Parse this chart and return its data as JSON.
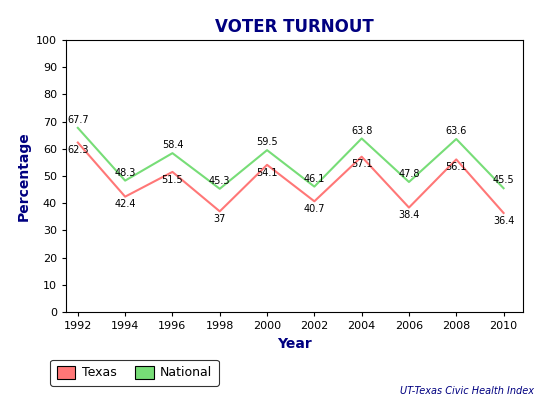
{
  "title": "VOTER TURNOUT",
  "xlabel": "Year",
  "ylabel": "Percentage",
  "years": [
    1992,
    1994,
    1996,
    1998,
    2000,
    2002,
    2004,
    2006,
    2008,
    2010
  ],
  "texas": [
    62.3,
    42.4,
    51.5,
    37.0,
    54.1,
    40.7,
    57.1,
    38.4,
    56.1,
    36.4
  ],
  "national": [
    67.7,
    48.3,
    58.4,
    45.3,
    59.5,
    46.1,
    63.8,
    47.8,
    63.6,
    45.5
  ],
  "texas_color": "#FF7777",
  "national_color": "#77DD77",
  "ylim": [
    0,
    100
  ],
  "yticks": [
    0,
    10,
    20,
    30,
    40,
    50,
    60,
    70,
    80,
    90,
    100
  ],
  "bg_color": "#FFFFFF",
  "plot_bg_color": "#FFFFFF",
  "title_color": "#000080",
  "axis_label_color": "#000080",
  "annotation_color": "#000000",
  "credit": "UT-Texas Civic Health Index",
  "legend_texas": "Texas",
  "legend_national": "National"
}
